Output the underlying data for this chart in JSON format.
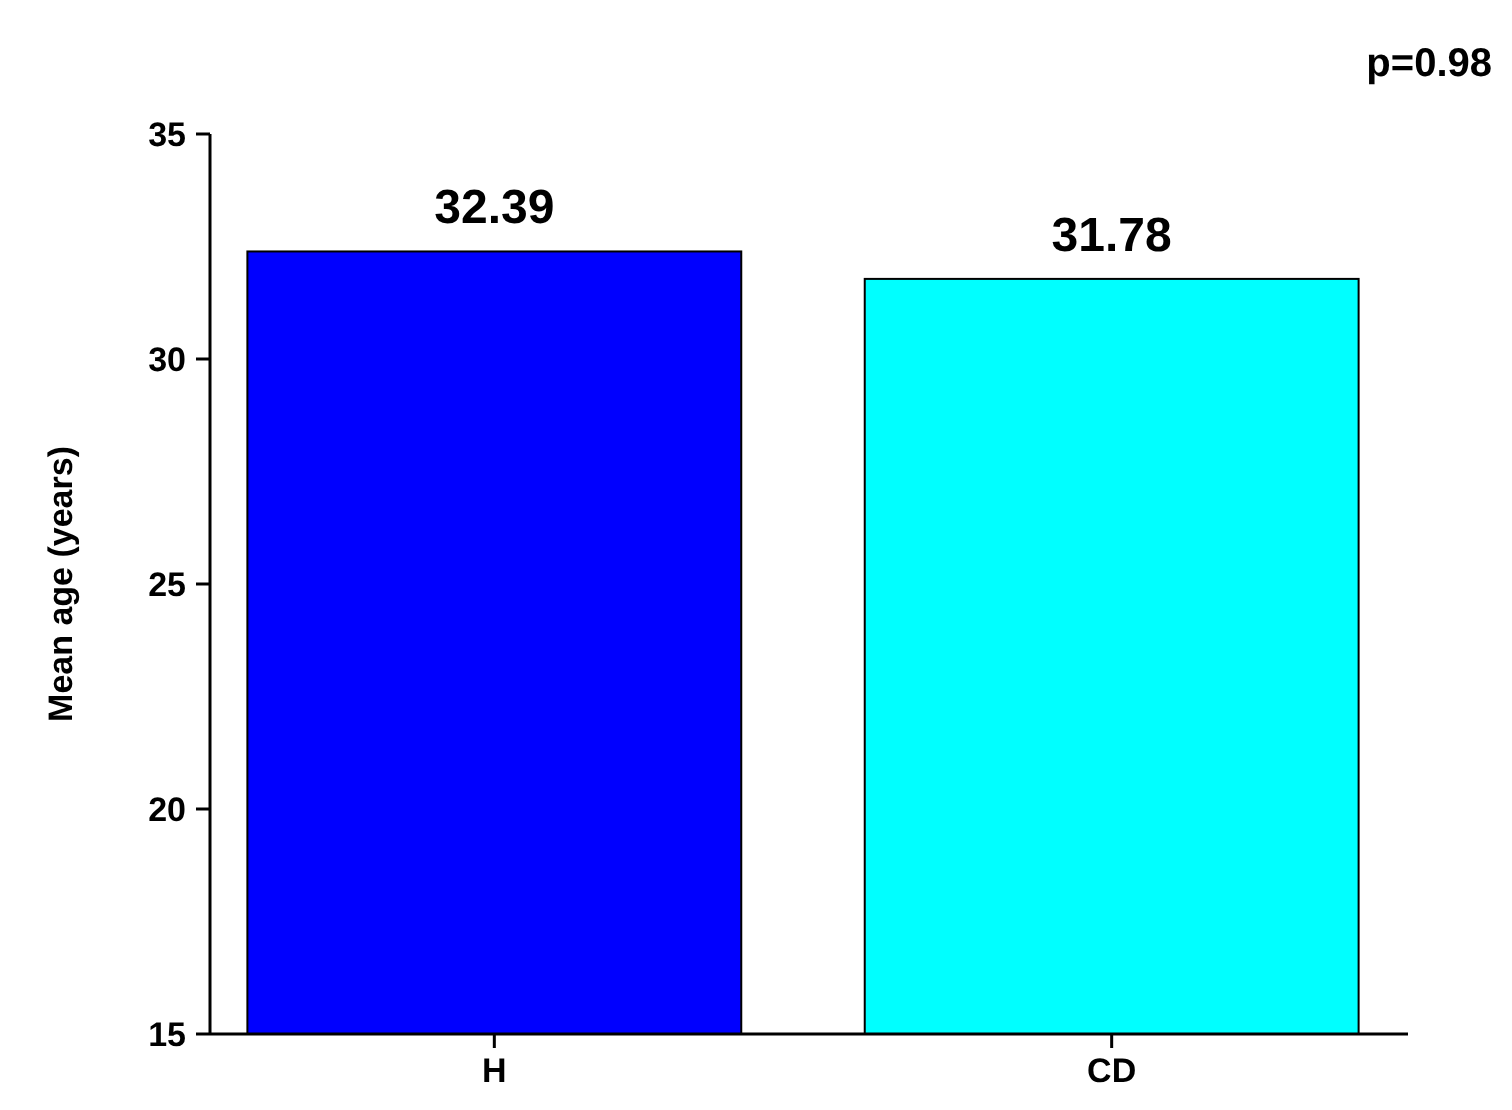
{
  "chart_data": {
    "type": "bar",
    "ylabel": "Mean age (years)",
    "categories": [
      "H",
      "CD"
    ],
    "values": [
      32.39,
      31.78
    ],
    "colors": [
      "#0000ff",
      "#00ffff"
    ],
    "ylim": [
      15,
      35
    ],
    "yticks": [
      15,
      20,
      25,
      30,
      35
    ],
    "data_labels": true,
    "grid": false,
    "annotations": [
      "p=0.98"
    ]
  }
}
